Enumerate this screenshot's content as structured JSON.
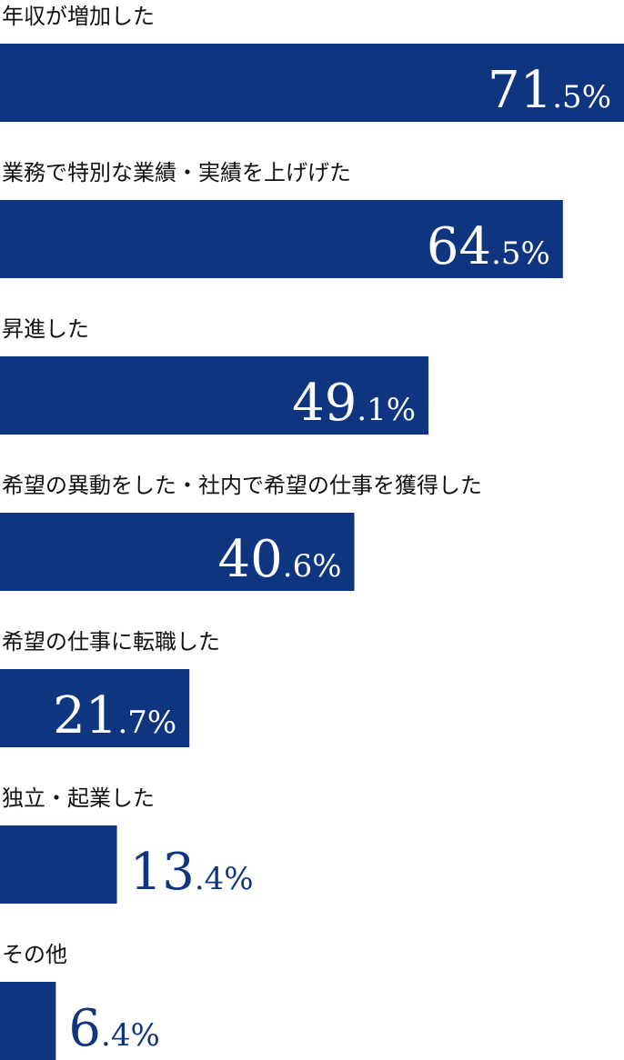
{
  "chart_data": {
    "type": "bar",
    "orientation": "horizontal",
    "color": "#0f3580",
    "categories": [
      "年収が増加した",
      "業務で特別な業績・実績を上げげた",
      "昇進した",
      "希望の異動をした・社内で希望の仕事を獲得した",
      "希望の仕事に転職した",
      "独立・起業した",
      "その他"
    ],
    "values": [
      71.5,
      64.5,
      49.1,
      40.6,
      21.7,
      13.4,
      6.4
    ],
    "value_labels": [
      "71.5%",
      "64.5%",
      "49.1%",
      "40.6%",
      "21.7%",
      "13.4%",
      "6.4%"
    ]
  }
}
